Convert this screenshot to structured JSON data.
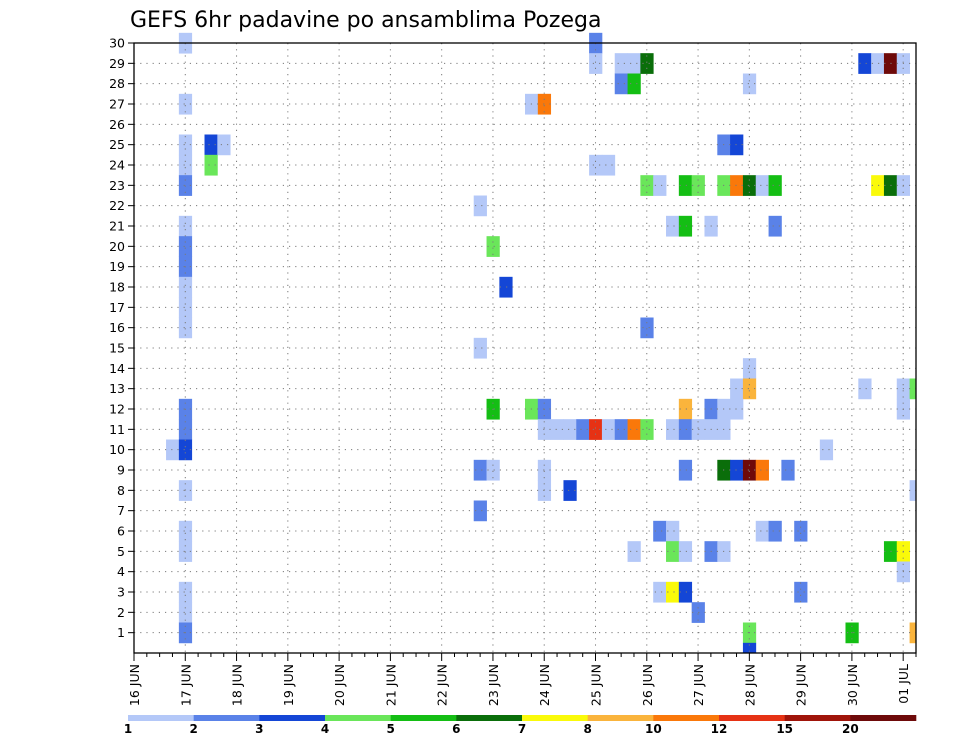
{
  "chart_data": {
    "type": "heatmap",
    "title": "GEFS 6hr padavine po ansamblima Pozega",
    "xlabel": "",
    "ylabel": "",
    "x_tick_labels": [
      "16 JUN",
      "17 JUN",
      "18 JUN",
      "19 JUN",
      "20 JUN",
      "21 JUN",
      "22 JUN",
      "23 JUN",
      "24 JUN",
      "25 JUN",
      "26 JUN",
      "27 JUN",
      "28 JUN",
      "29 JUN",
      "30 JUN",
      "01 JUL"
    ],
    "y_tick_labels": [
      "1",
      "2",
      "3",
      "4",
      "5",
      "6",
      "7",
      "8",
      "9",
      "10",
      "11",
      "12",
      "13",
      "14",
      "15",
      "16",
      "17",
      "18",
      "19",
      "20",
      "21",
      "22",
      "23",
      "24",
      "25",
      "26",
      "27",
      "28",
      "29",
      "30"
    ],
    "ylim": [
      0,
      30
    ],
    "x_unit": "6-hour step from 16 JUN 00 UTC",
    "xlim": [
      0,
      61
    ],
    "grid": true,
    "colorbar": {
      "tick_labels": [
        "1",
        "2",
        "3",
        "4",
        "5",
        "6",
        "7",
        "8",
        "10",
        "12",
        "15",
        "20"
      ],
      "colors": [
        "#b4c8f8",
        "#5a82e8",
        "#1446d6",
        "#6ae65a",
        "#14be14",
        "#0a6e0a",
        "#fafa0a",
        "#fab43c",
        "#fa780a",
        "#e63214",
        "#a0140a",
        "#6e0a0a"
      ]
    },
    "colors": {
      "c1": "#b4c8f8",
      "c2": "#5a82e8",
      "c3": "#1446d6",
      "c4": "#6ae65a",
      "c5": "#14be14",
      "c6": "#0a6e0a",
      "c7": "#fafa0a",
      "c8": "#fab43c",
      "c10": "#fa780a",
      "c12": "#e63214",
      "c15": "#a0140a",
      "c20": "#6e0a0a"
    },
    "cells": [
      {
        "member": 30,
        "step": 4,
        "level": 1
      },
      {
        "member": 30,
        "step": 36,
        "level": 2
      },
      {
        "member": 29,
        "step": 36,
        "level": 1
      },
      {
        "member": 29,
        "step": 38,
        "level": 1
      },
      {
        "member": 29,
        "step": 39,
        "level": 1
      },
      {
        "member": 29,
        "step": 40,
        "level": 6
      },
      {
        "member": 29,
        "step": 57,
        "level": 3
      },
      {
        "member": 29,
        "step": 58,
        "level": 1
      },
      {
        "member": 29,
        "step": 59,
        "level": 20
      },
      {
        "member": 29,
        "step": 60,
        "level": 1
      },
      {
        "member": 28,
        "step": 38,
        "level": 2
      },
      {
        "member": 28,
        "step": 39,
        "level": 5
      },
      {
        "member": 28,
        "step": 48,
        "level": 1
      },
      {
        "member": 27,
        "step": 4,
        "level": 1
      },
      {
        "member": 27,
        "step": 31,
        "level": 1
      },
      {
        "member": 27,
        "step": 32,
        "level": 10
      },
      {
        "member": 25,
        "step": 4,
        "level": 1
      },
      {
        "member": 25,
        "step": 6,
        "level": 3
      },
      {
        "member": 25,
        "step": 7,
        "level": 1
      },
      {
        "member": 25,
        "step": 46,
        "level": 2
      },
      {
        "member": 25,
        "step": 47,
        "level": 3
      },
      {
        "member": 24,
        "step": 4,
        "level": 1
      },
      {
        "member": 24,
        "step": 6,
        "level": 4
      },
      {
        "member": 24,
        "step": 36,
        "level": 1
      },
      {
        "member": 24,
        "step": 37,
        "level": 1
      },
      {
        "member": 23,
        "step": 4,
        "level": 2
      },
      {
        "member": 23,
        "step": 40,
        "level": 4
      },
      {
        "member": 23,
        "step": 41,
        "level": 1
      },
      {
        "member": 23,
        "step": 43,
        "level": 5
      },
      {
        "member": 23,
        "step": 44,
        "level": 4
      },
      {
        "member": 23,
        "step": 46,
        "level": 4
      },
      {
        "member": 23,
        "step": 47,
        "level": 10
      },
      {
        "member": 23,
        "step": 48,
        "level": 6
      },
      {
        "member": 23,
        "step": 49,
        "level": 1
      },
      {
        "member": 23,
        "step": 50,
        "level": 5
      },
      {
        "member": 23,
        "step": 58,
        "level": 7
      },
      {
        "member": 23,
        "step": 59,
        "level": 6
      },
      {
        "member": 23,
        "step": 60,
        "level": 1
      },
      {
        "member": 22,
        "step": 27,
        "level": 1
      },
      {
        "member": 21,
        "step": 4,
        "level": 1
      },
      {
        "member": 21,
        "step": 42,
        "level": 1
      },
      {
        "member": 21,
        "step": 43,
        "level": 5
      },
      {
        "member": 21,
        "step": 45,
        "level": 1
      },
      {
        "member": 21,
        "step": 50,
        "level": 2
      },
      {
        "member": 20,
        "step": 4,
        "level": 2
      },
      {
        "member": 20,
        "step": 28,
        "level": 4
      },
      {
        "member": 19,
        "step": 4,
        "level": 2
      },
      {
        "member": 18,
        "step": 4,
        "level": 1
      },
      {
        "member": 18,
        "step": 29,
        "level": 3
      },
      {
        "member": 17,
        "step": 4,
        "level": 1
      },
      {
        "member": 16,
        "step": 4,
        "level": 1
      },
      {
        "member": 16,
        "step": 40,
        "level": 2
      },
      {
        "member": 15,
        "step": 27,
        "level": 1
      },
      {
        "member": 14,
        "step": 48,
        "level": 1
      },
      {
        "member": 13,
        "step": 47,
        "level": 1
      },
      {
        "member": 13,
        "step": 48,
        "level": 8
      },
      {
        "member": 13,
        "step": 57,
        "level": 1
      },
      {
        "member": 13,
        "step": 60,
        "level": 1
      },
      {
        "member": 13,
        "step": 61,
        "level": 4
      },
      {
        "member": 12,
        "step": 4,
        "level": 2
      },
      {
        "member": 12,
        "step": 28,
        "level": 5
      },
      {
        "member": 12,
        "step": 31,
        "level": 4
      },
      {
        "member": 12,
        "step": 32,
        "level": 2
      },
      {
        "member": 12,
        "step": 43,
        "level": 8
      },
      {
        "member": 12,
        "step": 45,
        "level": 2
      },
      {
        "member": 12,
        "step": 46,
        "level": 1
      },
      {
        "member": 12,
        "step": 47,
        "level": 1
      },
      {
        "member": 12,
        "step": 60,
        "level": 1
      },
      {
        "member": 11,
        "step": 4,
        "level": 2
      },
      {
        "member": 11,
        "step": 32,
        "level": 1
      },
      {
        "member": 11,
        "step": 33,
        "level": 1
      },
      {
        "member": 11,
        "step": 34,
        "level": 1
      },
      {
        "member": 11,
        "step": 35,
        "level": 2
      },
      {
        "member": 11,
        "step": 36,
        "level": 12
      },
      {
        "member": 11,
        "step": 37,
        "level": 1
      },
      {
        "member": 11,
        "step": 38,
        "level": 2
      },
      {
        "member": 11,
        "step": 39,
        "level": 10
      },
      {
        "member": 11,
        "step": 40,
        "level": 4
      },
      {
        "member": 11,
        "step": 42,
        "level": 1
      },
      {
        "member": 11,
        "step": 43,
        "level": 2
      },
      {
        "member": 11,
        "step": 44,
        "level": 1
      },
      {
        "member": 11,
        "step": 45,
        "level": 1
      },
      {
        "member": 11,
        "step": 46,
        "level": 1
      },
      {
        "member": 10,
        "step": 3,
        "level": 1
      },
      {
        "member": 10,
        "step": 4,
        "level": 3
      },
      {
        "member": 10,
        "step": 54,
        "level": 1
      },
      {
        "member": 9,
        "step": 27,
        "level": 2
      },
      {
        "member": 9,
        "step": 28,
        "level": 1
      },
      {
        "member": 9,
        "step": 32,
        "level": 1
      },
      {
        "member": 9,
        "step": 43,
        "level": 2
      },
      {
        "member": 9,
        "step": 46,
        "level": 6
      },
      {
        "member": 9,
        "step": 47,
        "level": 3
      },
      {
        "member": 9,
        "step": 48,
        "level": 20
      },
      {
        "member": 9,
        "step": 49,
        "level": 10
      },
      {
        "member": 9,
        "step": 51,
        "level": 2
      },
      {
        "member": 8,
        "step": 4,
        "level": 1
      },
      {
        "member": 8,
        "step": 32,
        "level": 1
      },
      {
        "member": 8,
        "step": 34,
        "level": 3
      },
      {
        "member": 8,
        "step": 61,
        "level": 1
      },
      {
        "member": 7,
        "step": 27,
        "level": 2
      },
      {
        "member": 6,
        "step": 4,
        "level": 1
      },
      {
        "member": 6,
        "step": 41,
        "level": 2
      },
      {
        "member": 6,
        "step": 42,
        "level": 1
      },
      {
        "member": 6,
        "step": 49,
        "level": 1
      },
      {
        "member": 6,
        "step": 50,
        "level": 2
      },
      {
        "member": 6,
        "step": 52,
        "level": 2
      },
      {
        "member": 5,
        "step": 4,
        "level": 1
      },
      {
        "member": 5,
        "step": 39,
        "level": 1
      },
      {
        "member": 5,
        "step": 42,
        "level": 4
      },
      {
        "member": 5,
        "step": 43,
        "level": 1
      },
      {
        "member": 5,
        "step": 45,
        "level": 2
      },
      {
        "member": 5,
        "step": 46,
        "level": 1
      },
      {
        "member": 5,
        "step": 59,
        "level": 5
      },
      {
        "member": 5,
        "step": 60,
        "level": 7
      },
      {
        "member": 4,
        "step": 60,
        "level": 1
      },
      {
        "member": 3,
        "step": 4,
        "level": 1
      },
      {
        "member": 3,
        "step": 41,
        "level": 1
      },
      {
        "member": 3,
        "step": 42,
        "level": 7
      },
      {
        "member": 3,
        "step": 43,
        "level": 3
      },
      {
        "member": 3,
        "step": 52,
        "level": 2
      },
      {
        "member": 2,
        "step": 4,
        "level": 1
      },
      {
        "member": 2,
        "step": 44,
        "level": 2
      },
      {
        "member": 1,
        "step": 4,
        "level": 2
      },
      {
        "member": 1,
        "step": 48,
        "level": 4
      },
      {
        "member": 1,
        "step": 56,
        "level": 5
      },
      {
        "member": 1,
        "step": 61,
        "level": 8
      },
      {
        "member": 0,
        "step": 48,
        "level": 3
      }
    ]
  }
}
